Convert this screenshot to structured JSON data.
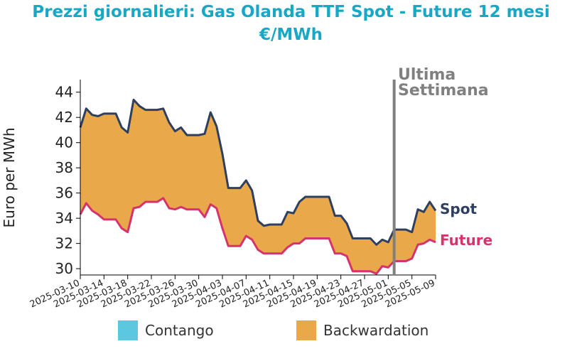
{
  "title_line1": "Prezzi giornalieri: Gas Olanda TTF Spot - Future 12 mesi",
  "title_line2": "€/MWh",
  "chart_data": {
    "type": "area",
    "ylabel": "Euro per MWh",
    "ylim": [
      29.5,
      45
    ],
    "yticks": [
      30,
      32,
      34,
      36,
      38,
      40,
      42,
      44
    ],
    "xlim": [
      "2025-03-10",
      "2025-05-09"
    ],
    "xticks": [
      "2025-03-10",
      "2025-03-14",
      "2025-03-18",
      "2025-03-22",
      "2025-03-26",
      "2025-03-30",
      "2025-04-03",
      "2025-04-07",
      "2025-04-11",
      "2025-04-15",
      "2025-04-19",
      "2025-04-23",
      "2025-04-27",
      "2025-05-01",
      "2025-05-05",
      "2025-05-09"
    ],
    "dates": [
      "2025-03-10",
      "2025-03-11",
      "2025-03-12",
      "2025-03-13",
      "2025-03-14",
      "2025-03-15",
      "2025-03-16",
      "2025-03-17",
      "2025-03-18",
      "2025-03-19",
      "2025-03-20",
      "2025-03-21",
      "2025-03-22",
      "2025-03-23",
      "2025-03-24",
      "2025-03-25",
      "2025-03-26",
      "2025-03-27",
      "2025-03-28",
      "2025-03-29",
      "2025-03-30",
      "2025-03-31",
      "2025-04-01",
      "2025-04-02",
      "2025-04-03",
      "2025-04-04",
      "2025-04-05",
      "2025-04-06",
      "2025-04-07",
      "2025-04-08",
      "2025-04-09",
      "2025-04-10",
      "2025-04-11",
      "2025-04-12",
      "2025-04-13",
      "2025-04-14",
      "2025-04-15",
      "2025-04-16",
      "2025-04-17",
      "2025-04-18",
      "2025-04-19",
      "2025-04-20",
      "2025-04-21",
      "2025-04-22",
      "2025-04-23",
      "2025-04-24",
      "2025-04-25",
      "2025-04-26",
      "2025-04-27",
      "2025-04-28",
      "2025-04-29",
      "2025-04-30",
      "2025-05-01",
      "2025-05-02",
      "2025-05-03",
      "2025-05-04",
      "2025-05-05",
      "2025-05-06",
      "2025-05-07",
      "2025-05-08",
      "2025-05-09"
    ],
    "series": [
      {
        "name": "Spot",
        "color": "#2e3f5f",
        "values": [
          41.2,
          42.7,
          42.2,
          42.1,
          42.3,
          42.3,
          42.3,
          41.2,
          40.8,
          43.4,
          42.9,
          42.6,
          42.6,
          42.6,
          42.7,
          41.6,
          40.9,
          41.2,
          40.6,
          40.6,
          40.6,
          40.7,
          42.4,
          41.3,
          39.1,
          36.4,
          36.4,
          36.4,
          37.0,
          36.2,
          33.8,
          33.4,
          33.5,
          33.5,
          33.5,
          34.5,
          34.4,
          35.3,
          35.7,
          35.7,
          35.7,
          35.7,
          35.7,
          34.2,
          34.2,
          33.6,
          32.4,
          32.4,
          32.4,
          32.4,
          31.9,
          32.3,
          32.1,
          33.1,
          33.1,
          33.1,
          32.9,
          34.7,
          34.5,
          35.3,
          34.6
        ]
      },
      {
        "name": "Future",
        "color": "#d6336c",
        "values": [
          34.3,
          35.2,
          34.6,
          34.3,
          33.9,
          33.9,
          33.9,
          33.2,
          32.9,
          34.8,
          34.9,
          35.3,
          35.3,
          35.3,
          35.6,
          34.8,
          34.7,
          34.9,
          34.7,
          34.7,
          34.7,
          34.1,
          35.1,
          34.8,
          33.2,
          31.8,
          31.8,
          31.8,
          32.6,
          32.3,
          31.5,
          31.2,
          31.2,
          31.2,
          31.2,
          31.7,
          32.0,
          32.0,
          32.4,
          32.4,
          32.4,
          32.4,
          32.4,
          31.2,
          31.2,
          31.0,
          29.8,
          29.8,
          29.8,
          29.8,
          29.6,
          30.2,
          30.1,
          30.6,
          30.6,
          30.6,
          30.8,
          31.9,
          32.0,
          32.3,
          32.1
        ]
      }
    ],
    "fill_colors": {
      "contango": "#5bc8df",
      "backwardation": "#e9a84a"
    },
    "annotation_date": "2025-05-02",
    "annotation_color": "#808080",
    "legend_position": "bottom",
    "grid": false
  },
  "annotation": {
    "line1": "Ultima",
    "line2": "Settimana"
  },
  "legend": {
    "contango": "Contango",
    "backwardation": "Backwardation"
  }
}
